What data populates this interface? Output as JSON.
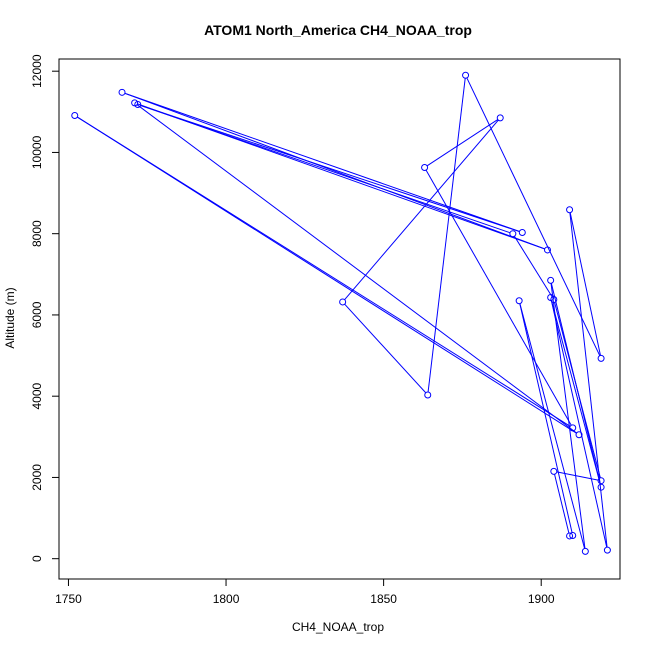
{
  "chart_data": {
    "type": "line",
    "title": "ATOM1 North_America CH4_NOAA_trop",
    "xlabel": "CH4_NOAA_trop",
    "ylabel": "Altitude (m)",
    "xlim": [
      1747,
      1925
    ],
    "ylim": [
      -500,
      12300
    ],
    "xticks": [
      1750,
      1800,
      1850,
      1900
    ],
    "yticks": [
      0,
      2000,
      4000,
      6000,
      8000,
      10000,
      12000
    ],
    "grid": false,
    "legend": "none",
    "color": "#0000ff",
    "series": [
      {
        "points": [
          {
            "x": 1910,
            "y": 570
          },
          {
            "x": 1893,
            "y": 6350
          },
          {
            "x": 1914,
            "y": 180
          },
          {
            "x": 1903,
            "y": 6850
          },
          {
            "x": 1919,
            "y": 1760
          },
          {
            "x": 1903,
            "y": 6430
          },
          {
            "x": 1921,
            "y": 210
          },
          {
            "x": 1909,
            "y": 8590
          },
          {
            "x": 1919,
            "y": 4930
          },
          {
            "x": 1876,
            "y": 11900
          },
          {
            "x": 1864,
            "y": 4030
          },
          {
            "x": 1837,
            "y": 6320
          },
          {
            "x": 1887,
            "y": 10850
          },
          {
            "x": 1863,
            "y": 9630
          },
          {
            "x": 1910,
            "y": 3220
          },
          {
            "x": 1752,
            "y": 10910
          },
          {
            "x": 1912,
            "y": 3050
          },
          {
            "x": 1771,
            "y": 11220
          },
          {
            "x": 1902,
            "y": 7600
          },
          {
            "x": 1767,
            "y": 11480
          },
          {
            "x": 1894,
            "y": 8030
          },
          {
            "x": 1772,
            "y": 11180
          },
          {
            "x": 1891,
            "y": 8000
          },
          {
            "x": 1904,
            "y": 6380
          },
          {
            "x": 1919,
            "y": 1920
          },
          {
            "x": 1904,
            "y": 2150
          },
          {
            "x": 1909,
            "y": 560
          }
        ]
      }
    ]
  }
}
